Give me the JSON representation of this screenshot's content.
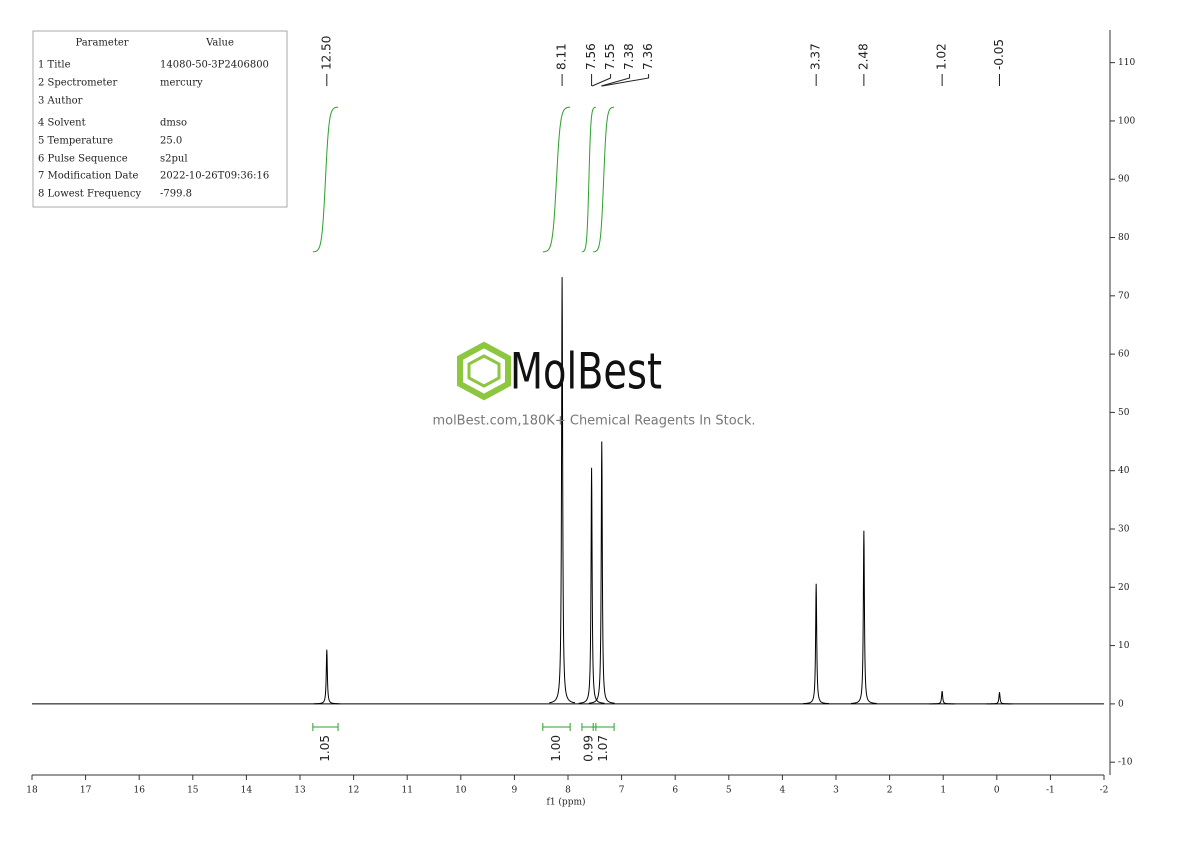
{
  "parameters": {
    "header": [
      "Parameter",
      "Value"
    ],
    "rows": [
      [
        "1 Title",
        "14080-50-3P2406800"
      ],
      [
        "2 Spectrometer",
        "mercury"
      ],
      [
        "3 Author"
      ],
      [
        "4 Solvent",
        "dmso"
      ],
      [
        "5 Temperature",
        "25.0"
      ],
      [
        "6 Pulse Sequence",
        "s2pul"
      ],
      [
        "7 Modification Date",
        "2022-10-26T09:36:16"
      ],
      [
        "8 Lowest Frequency",
        "-799.8"
      ]
    ]
  },
  "watermark": {
    "logo": "MolBest",
    "tagline": "molBest.com,180K+ Chemical Reagents In Stock."
  },
  "chart_data": {
    "type": "nmr",
    "xlabel": "f1 (ppm)",
    "xlim": [
      18,
      -2
    ],
    "ylim": [
      -12.2,
      115.6
    ],
    "xticks": [
      18,
      17,
      16,
      15,
      14,
      13,
      12,
      11,
      10,
      9,
      8,
      7,
      6,
      5,
      4,
      3,
      2,
      1,
      0,
      -1,
      -2
    ],
    "yticks": [
      -10,
      0,
      10,
      20,
      30,
      40,
      50,
      60,
      70,
      80,
      90,
      100,
      110
    ],
    "color": "#000000",
    "integral_color": "#2ca02c",
    "peaks": {
      "x": [
        12.5,
        8.11,
        7.56,
        7.37,
        3.37,
        2.48,
        1.02,
        -0.05
      ],
      "values": [
        9.3,
        73.2,
        40.5,
        45.0,
        20.6,
        29.7,
        2.2,
        2.0
      ]
    },
    "peak_labels": [
      {
        "value": 12.5,
        "label": "12.50"
      },
      8.11,
      7.56,
      7.55,
      7.38,
      7.36,
      3.37,
      2.48,
      1.02,
      -0.05
    ],
    "integrals": {
      "ranges": [
        [
          12.76,
          12.29
        ],
        [
          8.47,
          7.96
        ],
        [
          7.74,
          7.48
        ],
        [
          7.53,
          7.14
        ]
      ],
      "values": [
        1.05,
        1,
        0.99,
        1.07
      ],
      "value_labels": [
        "1.05",
        "1.00",
        "0.99",
        "1.07"
      ]
    }
  }
}
